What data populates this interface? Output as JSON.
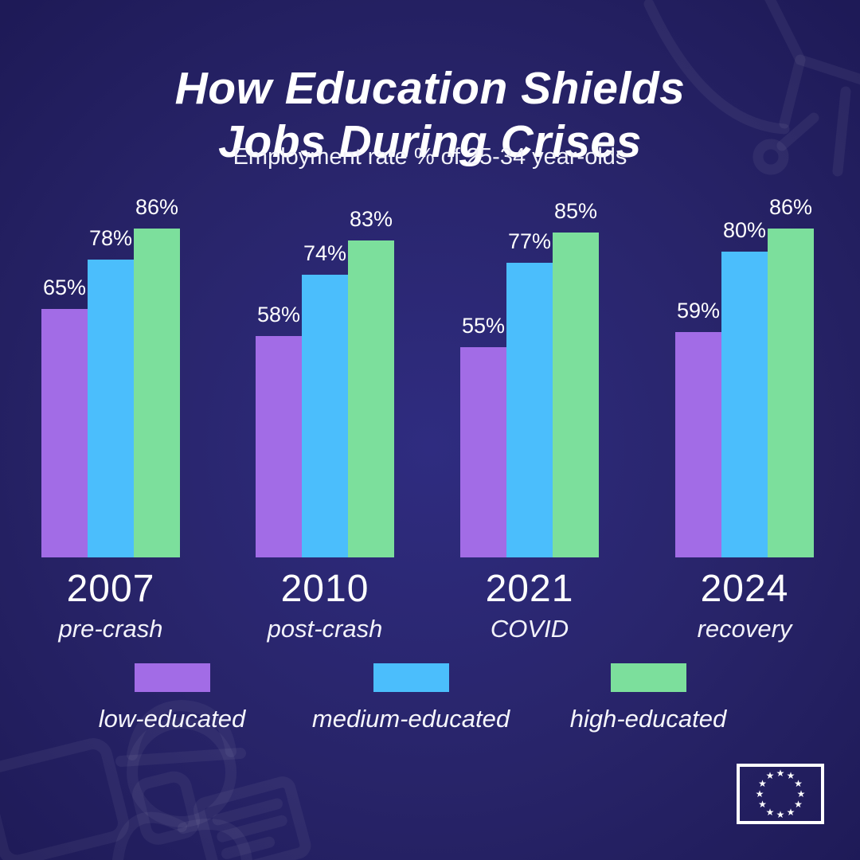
{
  "title": {
    "line1": "How Education Shields",
    "line2": "Jobs During Crises"
  },
  "subtitle": "Employment rate % of 25-34 year-olds",
  "colors": {
    "background_center": "#2f2c80",
    "background_edge": "#1e1a57",
    "low_educated": "#a26ce6",
    "medium_educated": "#4bbefc",
    "high_educated": "#7cdf9c",
    "text": "#ffffff"
  },
  "chart_data": {
    "type": "bar",
    "title": "How Education Shields Jobs During Crises",
    "subtitle": "Employment rate % of 25-34 year-olds",
    "unit": "%",
    "ylim": [
      0,
      100
    ],
    "grid": false,
    "axes_shown": false,
    "value_labels": true,
    "legend_position": "bottom",
    "categories": [
      "2007",
      "2010",
      "2021",
      "2024"
    ],
    "category_sublabels": [
      "pre-crash",
      "post-crash",
      "COVID",
      "recovery"
    ],
    "series": [
      {
        "name": "low-educated",
        "color": "#a26ce6",
        "values": [
          65,
          58,
          55,
          59
        ]
      },
      {
        "name": "medium-educated",
        "color": "#4bbefc",
        "values": [
          78,
          74,
          77,
          80
        ]
      },
      {
        "name": "high-educated",
        "color": "#7cdf9c",
        "values": [
          86,
          83,
          85,
          86
        ]
      }
    ]
  },
  "legend": [
    {
      "label": "low-educated",
      "color": "#a26ce6"
    },
    {
      "label": "medium-educated",
      "color": "#4bbefc"
    },
    {
      "label": "high-educated",
      "color": "#7cdf9c"
    }
  ],
  "footer": {
    "eu_flag_icon": "eu-flag",
    "eu_flag_stars": 12
  },
  "decorations": {
    "top_right": "network-nodes-line-art",
    "bottom_left": "worker-laptop-certificate-line-art"
  }
}
